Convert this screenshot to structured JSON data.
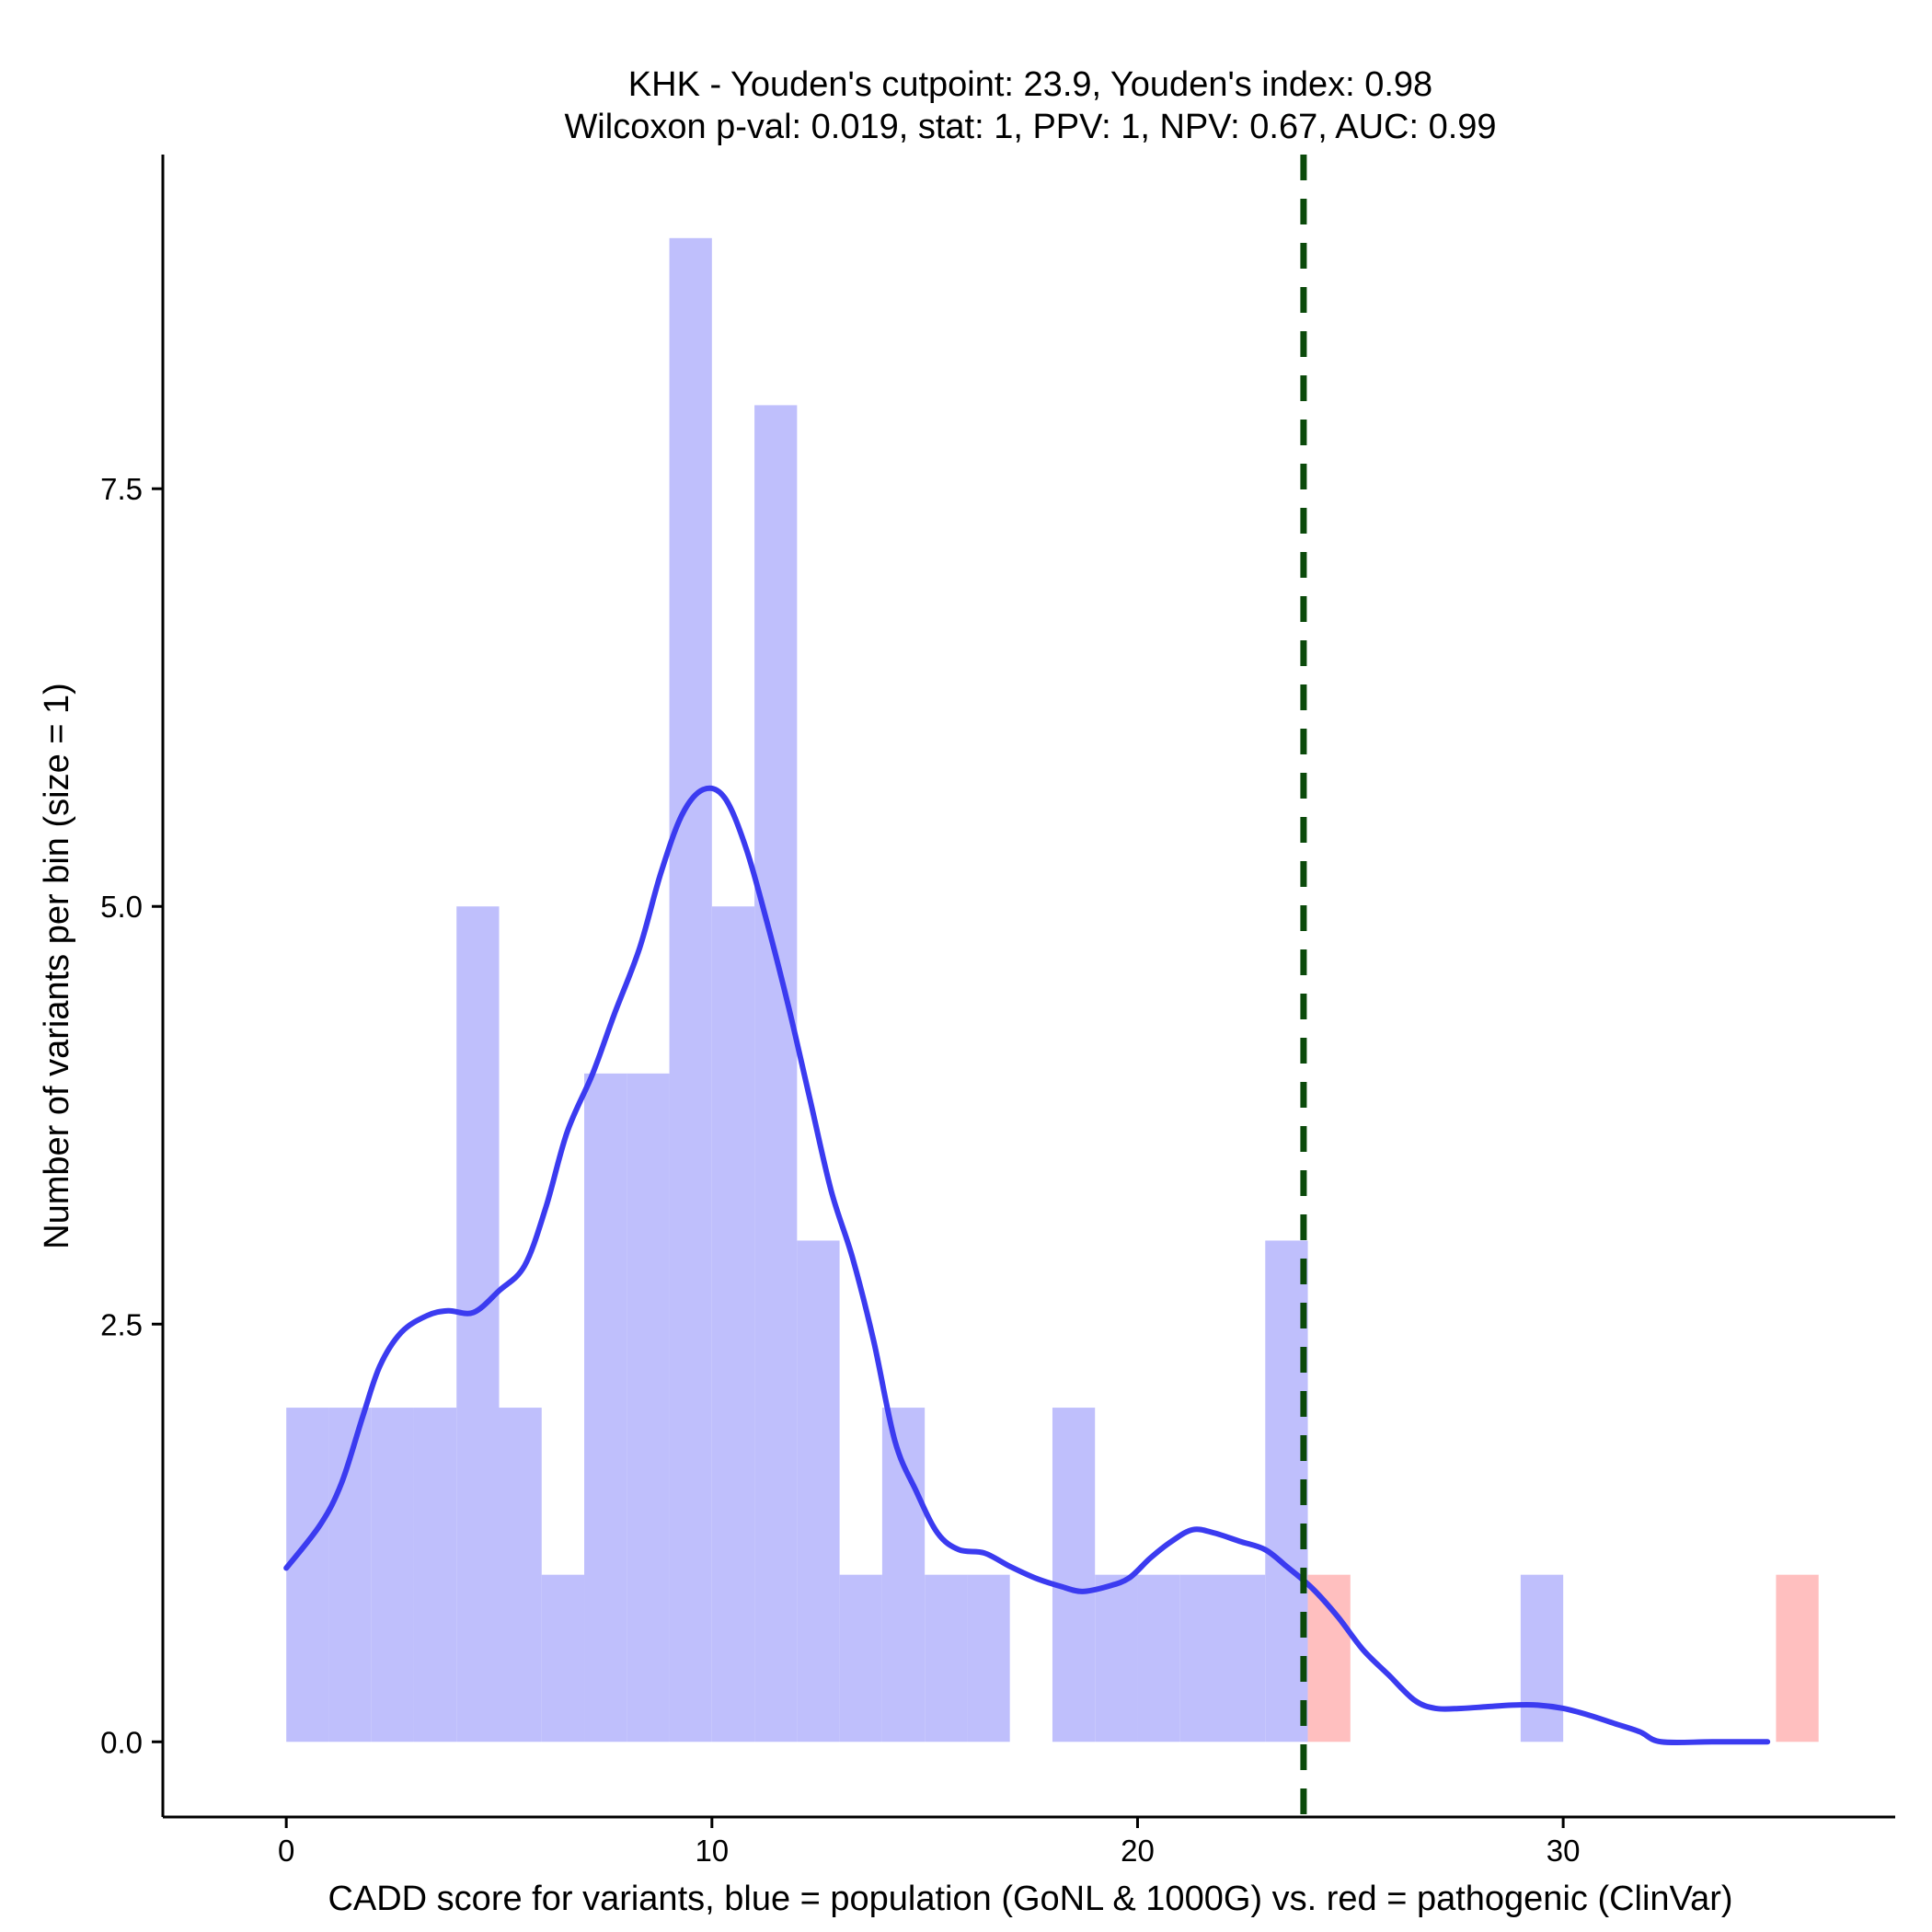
{
  "chart_data": {
    "type": "bar",
    "title_line1": "KHK - Youden's cutpoint: 23.9, Youden's index: 0.98",
    "title_line2": "Wilcoxon p-val: 0.019, stat: 1, PPV: 1, NPV: 0.67, AUC: 0.99",
    "xlabel": "CADD score for variants, blue = population (GoNL & 1000G) vs. red = pathogenic (ClinVar)",
    "ylabel": "Number of variants per bin (size = 1)",
    "xlim": [
      -2.9,
      37.8
    ],
    "ylim": [
      -0.45,
      9.5
    ],
    "x_ticks": [
      0,
      10,
      20,
      30
    ],
    "x_tick_labels": [
      "0",
      "10",
      "20",
      "30"
    ],
    "y_ticks": [
      0,
      2.5,
      5,
      7.5
    ],
    "y_tick_labels": [
      "0.0",
      "2.5",
      "5.0",
      "7.5"
    ],
    "bin_width": 1,
    "series": [
      {
        "color": "#bfbffc",
        "bins": [
          {
            "x0": 0,
            "count": 2
          },
          {
            "x0": 1,
            "count": 2
          },
          {
            "x0": 2,
            "count": 2
          },
          {
            "x0": 3,
            "count": 2
          },
          {
            "x0": 4,
            "count": 5
          },
          {
            "x0": 5,
            "count": 2
          },
          {
            "x0": 6,
            "count": 1
          },
          {
            "x0": 7,
            "count": 4
          },
          {
            "x0": 8,
            "count": 4
          },
          {
            "x0": 9,
            "count": 9
          },
          {
            "x0": 10,
            "count": 5
          },
          {
            "x0": 11,
            "count": 8
          },
          {
            "x0": 12,
            "count": 3
          },
          {
            "x0": 13,
            "count": 1
          },
          {
            "x0": 14,
            "count": 2
          },
          {
            "x0": 15,
            "count": 1
          },
          {
            "x0": 16,
            "count": 1
          },
          {
            "x0": 18,
            "count": 2
          },
          {
            "x0": 19,
            "count": 1
          },
          {
            "x0": 20,
            "count": 1
          },
          {
            "x0": 21,
            "count": 1
          },
          {
            "x0": 22,
            "count": 1
          },
          {
            "x0": 23,
            "count": 3
          },
          {
            "x0": 29,
            "count": 1
          }
        ]
      },
      {
        "color": "#ffbfbf",
        "bins": [
          {
            "x0": 24,
            "count": 1
          },
          {
            "x0": 35,
            "count": 1
          }
        ]
      }
    ],
    "density_curve": {
      "color": "#3b3bf0",
      "points": [
        [
          0,
          1.04
        ],
        [
          0.8,
          1.3
        ],
        [
          1.3,
          1.55
        ],
        [
          1.8,
          1.95
        ],
        [
          2.2,
          2.25
        ],
        [
          2.7,
          2.45
        ],
        [
          3.3,
          2.55
        ],
        [
          3.8,
          2.58
        ],
        [
          4.4,
          2.57
        ],
        [
          5.0,
          2.7
        ],
        [
          5.6,
          2.85
        ],
        [
          6.1,
          3.2
        ],
        [
          6.6,
          3.65
        ],
        [
          7.2,
          4.0
        ],
        [
          7.7,
          4.35
        ],
        [
          8.3,
          4.75
        ],
        [
          8.8,
          5.2
        ],
        [
          9.3,
          5.55
        ],
        [
          9.8,
          5.7
        ],
        [
          10.3,
          5.65
        ],
        [
          10.8,
          5.35
        ],
        [
          11.3,
          4.9
        ],
        [
          11.8,
          4.4
        ],
        [
          12.3,
          3.85
        ],
        [
          12.8,
          3.3
        ],
        [
          13.3,
          2.9
        ],
        [
          13.8,
          2.4
        ],
        [
          14.3,
          1.8
        ],
        [
          14.8,
          1.5
        ],
        [
          15.3,
          1.25
        ],
        [
          15.8,
          1.15
        ],
        [
          16.4,
          1.13
        ],
        [
          17.0,
          1.05
        ],
        [
          17.6,
          0.98
        ],
        [
          18.2,
          0.93
        ],
        [
          18.7,
          0.9
        ],
        [
          19.3,
          0.93
        ],
        [
          19.8,
          0.98
        ],
        [
          20.3,
          1.1
        ],
        [
          20.8,
          1.2
        ],
        [
          21.3,
          1.27
        ],
        [
          21.8,
          1.25
        ],
        [
          22.4,
          1.2
        ],
        [
          23.0,
          1.15
        ],
        [
          23.5,
          1.05
        ],
        [
          24.1,
          0.92
        ],
        [
          24.7,
          0.75
        ],
        [
          25.3,
          0.55
        ],
        [
          25.9,
          0.4
        ],
        [
          26.5,
          0.25
        ],
        [
          27.0,
          0.2
        ],
        [
          27.6,
          0.2
        ],
        [
          28.2,
          0.21
        ],
        [
          28.8,
          0.22
        ],
        [
          29.4,
          0.22
        ],
        [
          30.0,
          0.2
        ],
        [
          30.6,
          0.16
        ],
        [
          31.2,
          0.11
        ],
        [
          31.8,
          0.06
        ],
        [
          32.3,
          0.0
        ],
        [
          33.5,
          0.0
        ],
        [
          34.8,
          0.0
        ]
      ]
    },
    "cutpoint": {
      "x": 23.9,
      "color": "#0b4a0b",
      "style": "dashed"
    },
    "grid": false,
    "legend": "none"
  }
}
